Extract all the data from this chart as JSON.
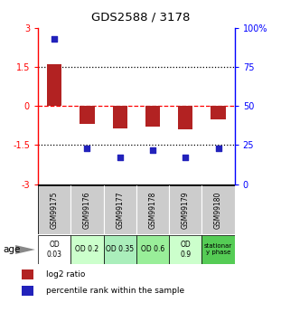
{
  "title": "GDS2588 / 3178",
  "samples": [
    "GSM99175",
    "GSM99176",
    "GSM99177",
    "GSM99178",
    "GSM99179",
    "GSM99180"
  ],
  "log2_ratio": [
    1.6,
    -0.7,
    -0.85,
    -0.8,
    -0.9,
    -0.5
  ],
  "percentile_rank": [
    93,
    23,
    17,
    22,
    17,
    23
  ],
  "bar_color": "#b22222",
  "dot_color": "#2222bb",
  "ylim_left": [
    -3,
    3
  ],
  "ylim_right": [
    0,
    100
  ],
  "yticks_left": [
    -3,
    -1.5,
    0,
    1.5,
    3
  ],
  "yticks_right": [
    0,
    25,
    50,
    75,
    100
  ],
  "yticklabels_right": [
    "0",
    "25",
    "50",
    "75",
    "100%"
  ],
  "age_labels": [
    "OD\n0.03",
    "OD 0.2",
    "OD 0.35",
    "OD 0.6",
    "OD\n0.9",
    "stationar\ny phase"
  ],
  "age_bg_colors": [
    "#ffffff",
    "#ccffcc",
    "#aaeebb",
    "#99ee99",
    "#ccffcc",
    "#55cc55"
  ],
  "sample_bg_color": "#cccccc",
  "legend_items": [
    {
      "color": "#b22222",
      "label": "log2 ratio"
    },
    {
      "color": "#2222bb",
      "label": "percentile rank within the sample"
    }
  ]
}
